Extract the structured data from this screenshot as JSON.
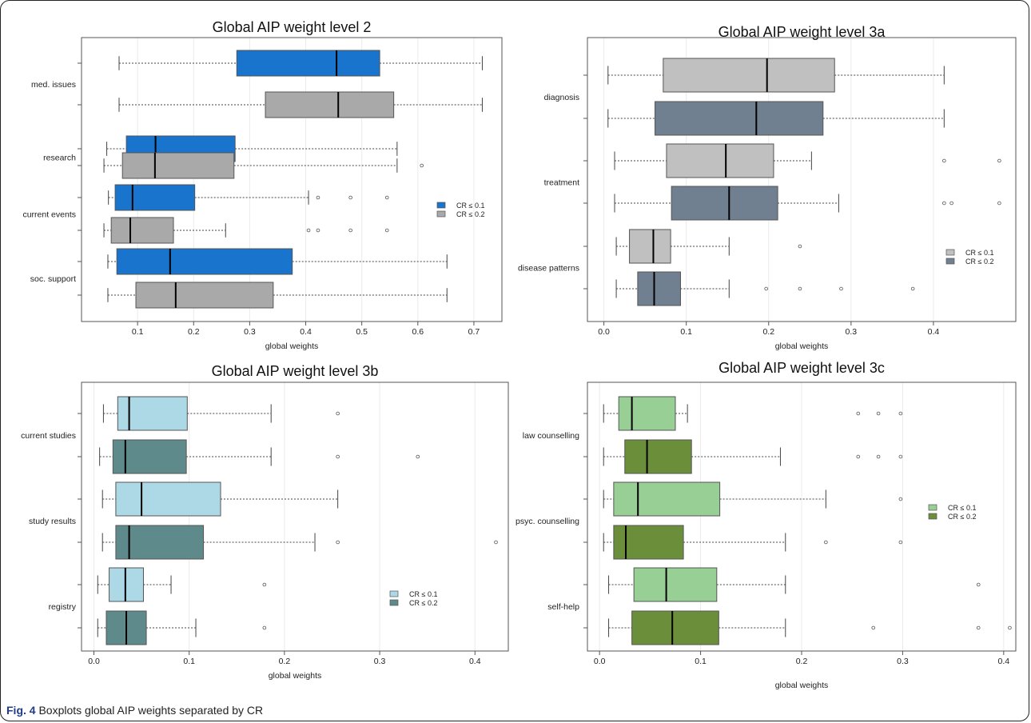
{
  "caption": {
    "label": "Fig. 4",
    "text": "Boxplots global AIP weights separated by CR"
  },
  "chart_data": [
    {
      "type": "boxplot",
      "title": "Global AIP weight level 2",
      "xlabel": "global weights",
      "xlim": [
        0.0,
        0.75
      ],
      "xticks": [
        "0.1",
        "0.2",
        "0.3",
        "0.4",
        "0.5",
        "0.6",
        "0.7"
      ],
      "legend": {
        "position": "right",
        "entries": [
          "CR ≤ 0.1",
          "CR ≤ 0.2"
        ]
      },
      "colors": {
        "CR ≤ 0.1": "#1874cd",
        "CR ≤ 0.2": "#a9a9a9"
      },
      "categories": [
        "med. issues",
        "research",
        "current events",
        "soc. support"
      ],
      "series": [
        {
          "name": "CR ≤ 0.1",
          "boxes": [
            {
              "category": "med. issues",
              "whislo": 0.067,
              "q1": 0.277,
              "med": 0.455,
              "q3": 0.532,
              "whishi": 0.715,
              "fliers": []
            },
            {
              "category": "research",
              "whislo": 0.045,
              "q1": 0.08,
              "med": 0.132,
              "q3": 0.274,
              "whishi": 0.563,
              "fliers": []
            },
            {
              "category": "current events",
              "whislo": 0.048,
              "q1": 0.06,
              "med": 0.091,
              "q3": 0.202,
              "whishi": 0.405,
              "fliers": [
                0.422,
                0.48,
                0.545
              ]
            },
            {
              "category": "soc. support",
              "whislo": 0.047,
              "q1": 0.063,
              "med": 0.158,
              "q3": 0.376,
              "whishi": 0.652,
              "fliers": []
            }
          ]
        },
        {
          "name": "CR ≤ 0.2",
          "boxes": [
            {
              "category": "med. issues",
              "whislo": 0.067,
              "q1": 0.328,
              "med": 0.458,
              "q3": 0.557,
              "whishi": 0.715,
              "fliers": []
            },
            {
              "category": "research",
              "whislo": 0.04,
              "q1": 0.073,
              "med": 0.131,
              "q3": 0.272,
              "whishi": 0.563,
              "fliers": [
                0.607
              ]
            },
            {
              "category": "current events",
              "whislo": 0.04,
              "q1": 0.053,
              "med": 0.087,
              "q3": 0.164,
              "whishi": 0.257,
              "fliers": [
                0.405,
                0.422,
                0.48,
                0.545
              ]
            },
            {
              "category": "soc. support",
              "whislo": 0.047,
              "q1": 0.097,
              "med": 0.168,
              "q3": 0.342,
              "whishi": 0.652,
              "fliers": []
            }
          ]
        }
      ]
    },
    {
      "type": "boxplot",
      "title": "Global AIP weight level 3a",
      "xlabel": "global weights",
      "xlim": [
        -0.02,
        0.5
      ],
      "xticks": [
        "0.0",
        "0.1",
        "0.2",
        "0.3",
        "0.4"
      ],
      "legend": {
        "position": "right",
        "entries": [
          "CR ≤ 0.1",
          "CR ≤ 0.2"
        ]
      },
      "colors": {
        "CR ≤ 0.1": "#c0c0c0",
        "CR ≤ 0.2": "#708090"
      },
      "categories": [
        "diagnosis",
        "treatment",
        "disease patterns"
      ],
      "series": [
        {
          "name": "CR ≤ 0.1",
          "boxes": [
            {
              "category": "diagnosis",
              "whislo": 0.005,
              "q1": 0.072,
              "med": 0.198,
              "q3": 0.28,
              "whishi": 0.413,
              "fliers": []
            },
            {
              "category": "treatment",
              "whislo": 0.013,
              "q1": 0.076,
              "med": 0.148,
              "q3": 0.206,
              "whishi": 0.252,
              "fliers": [
                0.413,
                0.48
              ]
            },
            {
              "category": "disease patterns",
              "whislo": 0.015,
              "q1": 0.031,
              "med": 0.06,
              "q3": 0.081,
              "whishi": 0.152,
              "fliers": [
                0.238
              ]
            }
          ]
        },
        {
          "name": "CR ≤ 0.2",
          "boxes": [
            {
              "category": "diagnosis",
              "whislo": 0.005,
              "q1": 0.062,
              "med": 0.185,
              "q3": 0.266,
              "whishi": 0.413,
              "fliers": []
            },
            {
              "category": "treatment",
              "whislo": 0.013,
              "q1": 0.082,
              "med": 0.152,
              "q3": 0.211,
              "whishi": 0.285,
              "fliers": [
                0.413,
                0.422,
                0.48
              ]
            },
            {
              "category": "disease patterns",
              "whislo": 0.015,
              "q1": 0.041,
              "med": 0.061,
              "q3": 0.093,
              "whishi": 0.152,
              "fliers": [
                0.197,
                0.238,
                0.288,
                0.375
              ]
            }
          ]
        }
      ]
    },
    {
      "type": "boxplot",
      "title": "Global AIP weight level 3b",
      "xlabel": "global weights",
      "xlim": [
        -0.013,
        0.435
      ],
      "xticks": [
        "0.0",
        "0.1",
        "0.2",
        "0.3",
        "0.4"
      ],
      "legend": {
        "position": "right",
        "entries": [
          "CR ≤ 0.1",
          "CR ≤ 0.2"
        ]
      },
      "colors": {
        "CR ≤ 0.1": "#add8e6",
        "CR ≤ 0.2": "#5f8a8b"
      },
      "categories": [
        "current studies",
        "study results",
        "registry"
      ],
      "series": [
        {
          "name": "CR ≤ 0.1",
          "boxes": [
            {
              "category": "current studies",
              "whislo": 0.01,
              "q1": 0.025,
              "med": 0.037,
              "q3": 0.098,
              "whishi": 0.186,
              "fliers": [
                0.256
              ]
            },
            {
              "category": "study results",
              "whislo": 0.009,
              "q1": 0.023,
              "med": 0.05,
              "q3": 0.133,
              "whishi": 0.256,
              "fliers": []
            },
            {
              "category": "registry",
              "whislo": 0.004,
              "q1": 0.016,
              "med": 0.033,
              "q3": 0.052,
              "whishi": 0.081,
              "fliers": [
                0.179
              ]
            }
          ]
        },
        {
          "name": "CR ≤ 0.2",
          "boxes": [
            {
              "category": "current studies",
              "whislo": 0.006,
              "q1": 0.02,
              "med": 0.033,
              "q3": 0.097,
              "whishi": 0.186,
              "fliers": [
                0.256,
                0.34
              ]
            },
            {
              "category": "study results",
              "whislo": 0.009,
              "q1": 0.023,
              "med": 0.037,
              "q3": 0.115,
              "whishi": 0.232,
              "fliers": [
                0.256,
                0.422
              ]
            },
            {
              "category": "registry",
              "whislo": 0.004,
              "q1": 0.013,
              "med": 0.034,
              "q3": 0.055,
              "whishi": 0.107,
              "fliers": [
                0.179
              ]
            }
          ]
        }
      ]
    },
    {
      "type": "boxplot",
      "title": "Global AIP weight level 3c",
      "xlabel": "global weights",
      "xlim": [
        -0.012,
        0.412
      ],
      "xticks": [
        "0.0",
        "0.1",
        "0.2",
        "0.3",
        "0.4"
      ],
      "legend": {
        "position": "right",
        "entries": [
          "CR ≤ 0.1",
          "CR ≤ 0.2"
        ]
      },
      "colors": {
        "CR ≤ 0.1": "#98cf95",
        "CR ≤ 0.2": "#6b8e3a"
      },
      "categories": [
        "law counselling",
        "psyc. counselling",
        "self-help"
      ],
      "series": [
        {
          "name": "CR ≤ 0.1",
          "boxes": [
            {
              "category": "law counselling",
              "whislo": 0.004,
              "q1": 0.019,
              "med": 0.032,
              "q3": 0.075,
              "whishi": 0.087,
              "fliers": [
                0.256,
                0.276,
                0.298
              ]
            },
            {
              "category": "psyc. counselling",
              "whislo": 0.004,
              "q1": 0.014,
              "med": 0.038,
              "q3": 0.119,
              "whishi": 0.224,
              "fliers": [
                0.298
              ]
            },
            {
              "category": "self-help",
              "whislo": 0.009,
              "q1": 0.034,
              "med": 0.066,
              "q3": 0.116,
              "whishi": 0.184,
              "fliers": [
                0.375
              ]
            }
          ]
        },
        {
          "name": "CR ≤ 0.2",
          "boxes": [
            {
              "category": "law counselling",
              "whislo": 0.004,
              "q1": 0.025,
              "med": 0.047,
              "q3": 0.091,
              "whishi": 0.179,
              "fliers": [
                0.256,
                0.276,
                0.298
              ]
            },
            {
              "category": "psyc. counselling",
              "whislo": 0.004,
              "q1": 0.014,
              "med": 0.026,
              "q3": 0.083,
              "whishi": 0.184,
              "fliers": [
                0.224,
                0.298
              ]
            },
            {
              "category": "self-help",
              "whislo": 0.009,
              "q1": 0.032,
              "med": 0.072,
              "q3": 0.118,
              "whishi": 0.184,
              "fliers": [
                0.271,
                0.375,
                0.406
              ]
            }
          ]
        }
      ]
    }
  ]
}
